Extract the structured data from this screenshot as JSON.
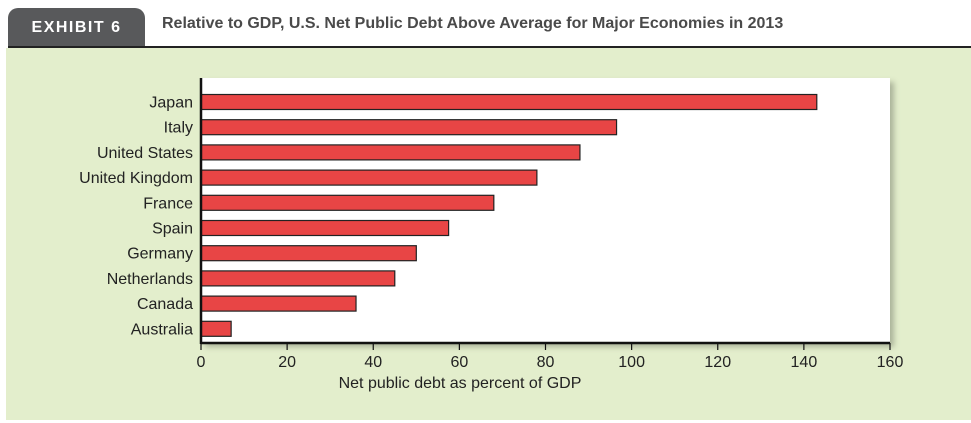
{
  "exhibit_label": "EXHIBIT 6",
  "chart_data": {
    "type": "bar",
    "orientation": "horizontal",
    "title": "Relative to GDP, U.S. Net Public Debt Above Average for Major Economies in 2013",
    "xlabel": "Net public debt as percent of GDP",
    "ylabel": "",
    "categories": [
      "Japan",
      "Italy",
      "United States",
      "United Kingdom",
      "France",
      "Spain",
      "Germany",
      "Netherlands",
      "Canada",
      "Australia"
    ],
    "values": [
      143,
      96.5,
      88,
      78,
      68,
      57.5,
      50,
      45,
      36,
      7
    ],
    "xlim": [
      0,
      160
    ],
    "xticks": [
      0,
      20,
      40,
      60,
      80,
      100,
      120,
      140,
      160
    ],
    "grid": false,
    "colors": {
      "bar": "#e84545",
      "bar_outline": "#222222",
      "panel": "#e3eecc",
      "tab": "#58595b"
    }
  }
}
